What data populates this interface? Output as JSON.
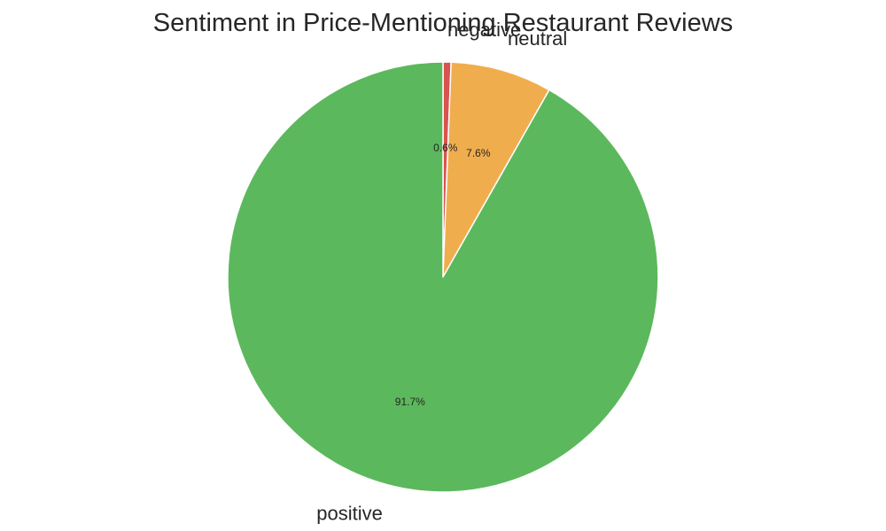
{
  "chart_data": {
    "type": "pie",
    "title": "Sentiment in Price-Mentioning Restaurant Reviews",
    "categories": [
      "negative",
      "neutral",
      "positive"
    ],
    "values": [
      0.6,
      7.6,
      91.7
    ],
    "percent_labels": [
      "0.6%",
      "7.6%",
      "91.7%"
    ],
    "colors": [
      "#d9534f",
      "#f0ad4e",
      "#5cb85c"
    ],
    "start_angle_deg": 90,
    "direction": "clockwise",
    "legend": "none"
  }
}
